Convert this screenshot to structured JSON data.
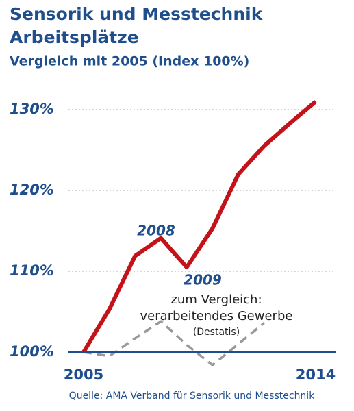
{
  "chart_data": {
    "type": "line",
    "title": [
      "Sensorik und Messtechnik",
      "Arbeitsplätze"
    ],
    "subtitle": "Vergleich mit 2005 (Index 100%)",
    "categories": [
      "2005",
      null,
      null,
      null,
      null,
      null,
      null,
      null,
      null,
      "2014"
    ],
    "series": [
      {
        "color": "#c4121a",
        "dashed": false,
        "values": [
          100,
          105.3,
          111.9,
          114.1,
          110.5,
          115.3,
          122,
          125.5,
          128.3,
          131
        ]
      },
      {
        "color": "#999999",
        "dashed": true,
        "values": [
          100,
          99.5,
          101.7,
          103.8,
          100.9,
          98.4,
          101,
          103.6,
          null,
          null
        ]
      }
    ],
    "ylim": [
      97.5,
      132.5
    ],
    "yticks": [
      {
        "value": 100,
        "label": "100%"
      },
      {
        "value": 110,
        "label": "110%"
      },
      {
        "value": 120,
        "label": "120%"
      },
      {
        "value": 130,
        "label": "130%"
      }
    ],
    "grid": true,
    "baseline_color": "#1f4e8c",
    "annotations": [
      "2008",
      "2009",
      "zum Vergleich:",
      "verarbeitendes Gewerbe",
      "(Destatis)"
    ],
    "source": "Quelle: AMA Verband für Sensorik und Messtechnik"
  }
}
